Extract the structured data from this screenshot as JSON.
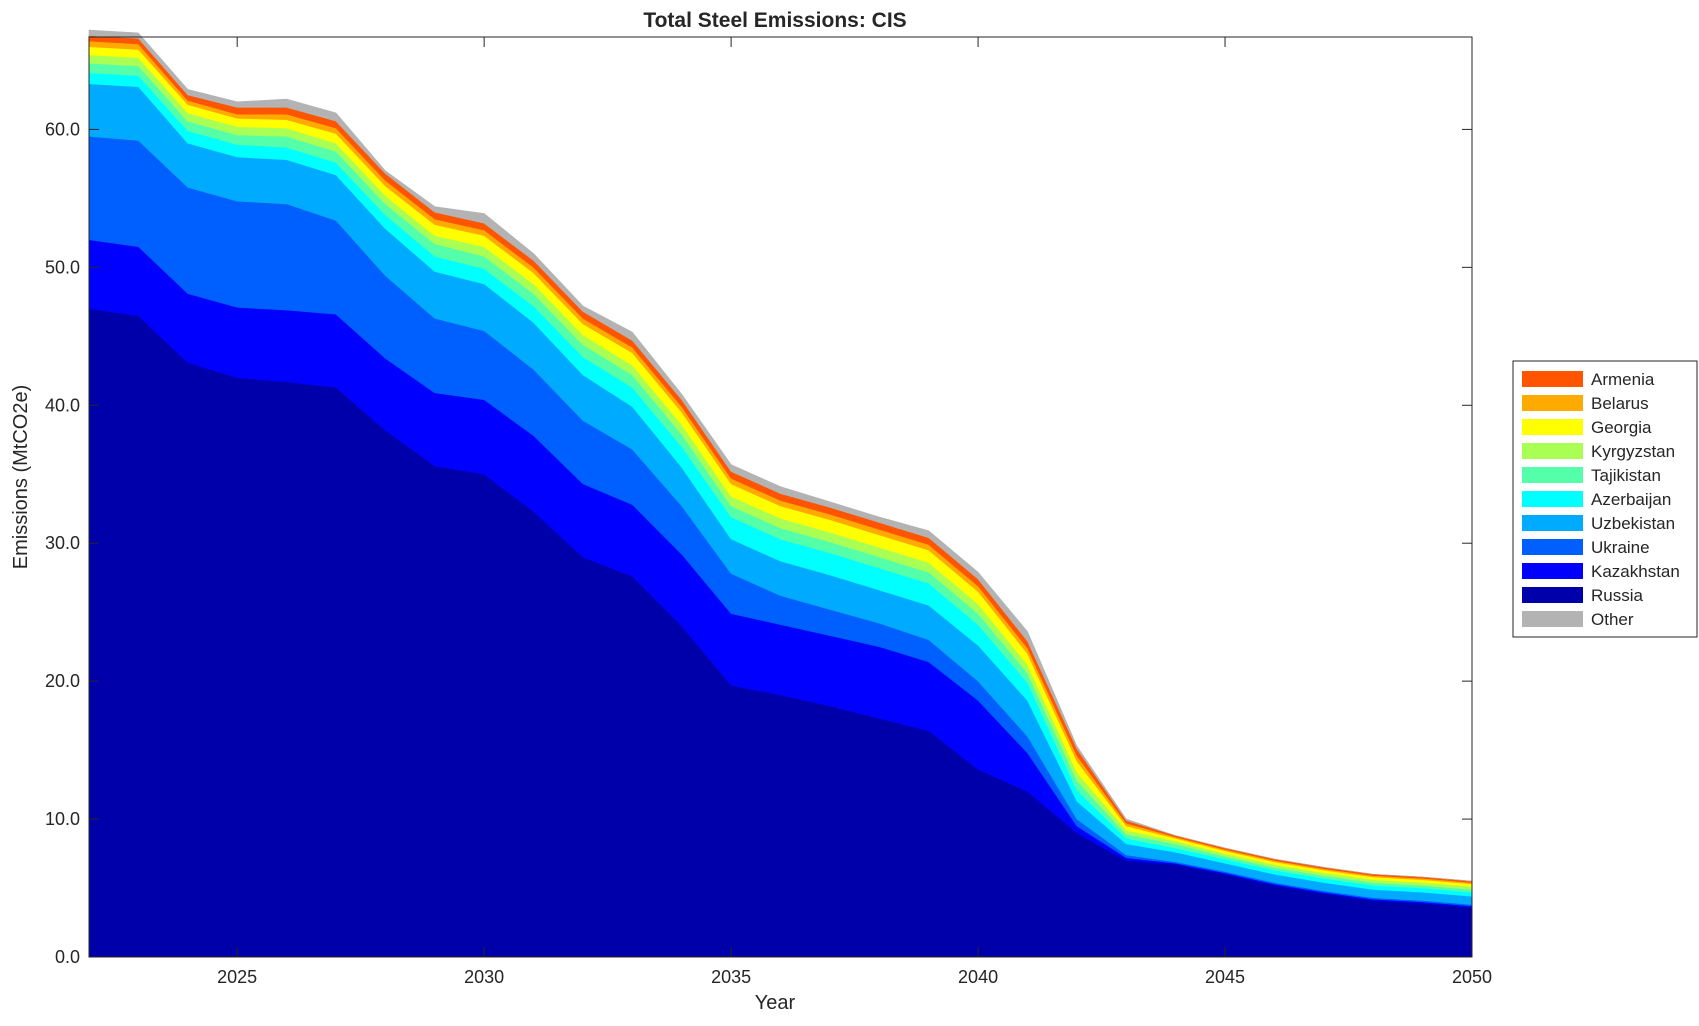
{
  "chart_data": {
    "type": "area",
    "stacked": true,
    "title": "Total Steel Emissions: CIS",
    "xlabel": "Year",
    "ylabel": "Emissions (MtCO2e)",
    "xlim": [
      2022,
      2050
    ],
    "ylim": [
      0,
      66.7
    ],
    "x_ticks": [
      2025,
      2030,
      2035,
      2040,
      2045,
      2050
    ],
    "y_ticks": [
      0,
      10,
      20,
      30,
      40,
      50,
      60
    ],
    "y_tick_labels": [
      "0.0",
      "10.0",
      "20.0",
      "30.0",
      "40.0",
      "50.0",
      "60.0"
    ],
    "legend_position": "right",
    "grid": false,
    "x": [
      2022,
      2023,
      2024,
      2025,
      2026,
      2027,
      2028,
      2029,
      2030,
      2031,
      2032,
      2033,
      2034,
      2035,
      2036,
      2037,
      2038,
      2039,
      2040,
      2041,
      2042,
      2043,
      2044,
      2045,
      2046,
      2047,
      2048,
      2049,
      2050
    ],
    "series": [
      {
        "name": "Russia",
        "color": "#0000AA",
        "values": [
          47.0,
          46.5,
          43.1,
          42.0,
          41.7,
          41.3,
          38.2,
          35.6,
          35.0,
          32.3,
          29.0,
          27.6,
          24.0,
          19.7,
          19.0,
          18.2,
          17.3,
          16.4,
          13.6,
          12.0,
          9.0,
          7.0,
          6.7,
          6.0,
          5.2,
          4.6,
          4.1,
          3.9,
          3.6
        ]
      },
      {
        "name": "Kazakhstan",
        "color": "#0000FF",
        "values": [
          5.0,
          5.0,
          5.0,
          5.1,
          5.2,
          5.3,
          5.2,
          5.3,
          5.4,
          5.5,
          5.3,
          5.2,
          5.2,
          5.2,
          5.1,
          5.1,
          5.2,
          5.0,
          5.0,
          2.8,
          0.5,
          0.2,
          0.1,
          0.1,
          0.1,
          0.1,
          0.1,
          0.1,
          0.1
        ]
      },
      {
        "name": "Ukraine",
        "color": "#005FFF",
        "values": [
          7.5,
          7.7,
          7.7,
          7.7,
          7.7,
          6.8,
          6.0,
          5.4,
          5.0,
          4.8,
          4.6,
          4.0,
          3.5,
          2.9,
          2.1,
          1.9,
          1.7,
          1.6,
          1.4,
          1.2,
          0.5,
          0.2,
          0.1,
          0.1,
          0.1,
          0.1,
          0.1,
          0.1,
          0.1
        ]
      },
      {
        "name": "Uzbekistan",
        "color": "#00AAFF",
        "values": [
          3.8,
          3.9,
          3.2,
          3.2,
          3.2,
          3.3,
          3.4,
          3.4,
          3.4,
          3.4,
          3.3,
          3.1,
          2.8,
          2.5,
          2.5,
          2.5,
          2.4,
          2.5,
          2.6,
          2.6,
          1.3,
          0.8,
          0.7,
          0.6,
          0.6,
          0.6,
          0.6,
          0.6,
          0.6
        ]
      },
      {
        "name": "Azerbaijan",
        "color": "#00FFFF",
        "values": [
          0.8,
          0.8,
          0.9,
          0.9,
          0.9,
          0.9,
          1.0,
          1.1,
          1.1,
          1.2,
          1.3,
          1.4,
          1.5,
          1.6,
          1.6,
          1.6,
          1.6,
          1.6,
          1.5,
          1.3,
          0.8,
          0.4,
          0.3,
          0.3,
          0.3,
          0.3,
          0.3,
          0.3,
          0.3
        ]
      },
      {
        "name": "Tajikistan",
        "color": "#55FFAA",
        "values": [
          0.7,
          0.7,
          0.7,
          0.7,
          0.8,
          0.8,
          0.8,
          0.9,
          0.9,
          0.9,
          0.9,
          0.9,
          0.9,
          0.8,
          0.8,
          0.8,
          0.8,
          0.8,
          0.8,
          0.7,
          0.7,
          0.3,
          0.3,
          0.2,
          0.2,
          0.2,
          0.2,
          0.2,
          0.2
        ]
      },
      {
        "name": "Kyrgyzstan",
        "color": "#AAFF55",
        "values": [
          0.6,
          0.6,
          0.6,
          0.6,
          0.6,
          0.6,
          0.6,
          0.6,
          0.7,
          0.7,
          0.7,
          0.7,
          0.7,
          0.7,
          0.7,
          0.7,
          0.7,
          0.7,
          0.7,
          0.6,
          0.6,
          0.3,
          0.2,
          0.2,
          0.2,
          0.2,
          0.2,
          0.2,
          0.2
        ]
      },
      {
        "name": "Georgia",
        "color": "#FFFF00",
        "values": [
          0.6,
          0.6,
          0.6,
          0.6,
          0.6,
          0.7,
          0.7,
          0.8,
          0.8,
          0.8,
          0.8,
          0.9,
          0.9,
          0.9,
          0.9,
          0.9,
          0.9,
          0.9,
          0.9,
          0.8,
          0.8,
          0.3,
          0.2,
          0.2,
          0.2,
          0.2,
          0.2,
          0.2,
          0.2
        ]
      },
      {
        "name": "Belarus",
        "color": "#FFAA00",
        "values": [
          0.4,
          0.4,
          0.3,
          0.3,
          0.4,
          0.4,
          0.4,
          0.4,
          0.4,
          0.4,
          0.4,
          0.4,
          0.4,
          0.4,
          0.4,
          0.4,
          0.4,
          0.4,
          0.4,
          0.4,
          0.4,
          0.2,
          0.1,
          0.1,
          0.1,
          0.1,
          0.1,
          0.1,
          0.1
        ]
      },
      {
        "name": "Armenia",
        "color": "#FF5500",
        "values": [
          0.4,
          0.4,
          0.4,
          0.5,
          0.5,
          0.5,
          0.5,
          0.5,
          0.5,
          0.5,
          0.5,
          0.5,
          0.5,
          0.5,
          0.5,
          0.5,
          0.5,
          0.5,
          0.5,
          0.5,
          0.5,
          0.2,
          0.1,
          0.1,
          0.1,
          0.1,
          0.1,
          0.1,
          0.1
        ]
      },
      {
        "name": "Other",
        "color": "#B3B3B3",
        "values": [
          0.4,
          0.4,
          0.4,
          0.4,
          0.6,
          0.6,
          0.2,
          0.4,
          0.7,
          0.5,
          0.4,
          0.6,
          0.4,
          0.5,
          0.5,
          0.4,
          0.4,
          0.5,
          0.5,
          0.7,
          0.2,
          0.1,
          0.0,
          0.0,
          0.0,
          0.0,
          0.0,
          0.0,
          0.0
        ]
      }
    ],
    "legend_order": [
      "Armenia",
      "Belarus",
      "Georgia",
      "Kyrgyzstan",
      "Tajikistan",
      "Azerbaijan",
      "Uzbekistan",
      "Ukraine",
      "Kazakhstan",
      "Russia",
      "Other"
    ]
  }
}
